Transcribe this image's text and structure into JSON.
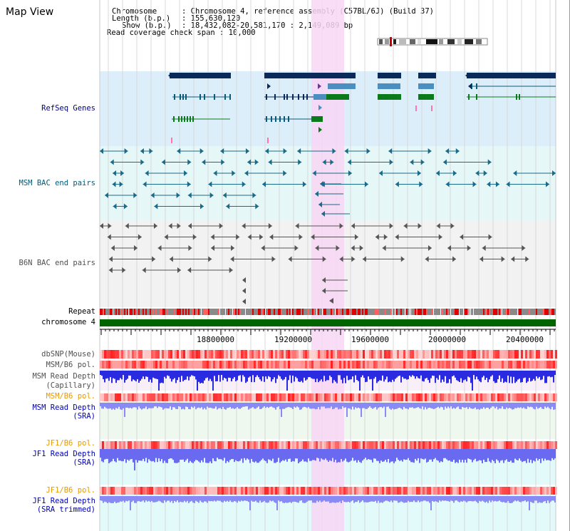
{
  "title": "Map View",
  "header": {
    "chromosome_key": "Chromosome",
    "chromosome_val": ": Chromosome 4, reference assembly (C57BL/6J) (Build 37)",
    "length_key": "Length (b.p.)",
    "length_val": ": 155,630,120",
    "show_key": "Show (b.p.)",
    "show_val": ": 18,432,082-20,581,170 : 2,149,089 bp",
    "coverage": "Read coverage check span : 10,000"
  },
  "tracks": {
    "refseq": "RefSeq Genes",
    "msm_bac": "MSM BAC end pairs",
    "b6n_bac": "B6N BAC end pairs",
    "repeat": "Repeat",
    "chromosome": "chromosome 4",
    "dbsnp": "dbSNP(Mouse)",
    "msm_b6_pol": "MSM/B6 pol.",
    "msm_depth_cap_1": "MSM Read Depth",
    "msm_depth_cap_2": "(Capillary)",
    "msm_b6_pol2": "MSM/B6 pol.",
    "msm_depth_sra_1": "MSM Read Depth",
    "msm_depth_sra_2": "(SRA)",
    "jf1_b6_pol": "JF1/B6 pol.",
    "jf1_depth_sra_1": "JF1 Read Depth",
    "jf1_depth_sra_2": "(SRA)",
    "jf1_b6_pol2": "JF1/B6 pol.",
    "jf1_depth_trim_1": "JF1 Read Depth",
    "jf1_depth_trim_2": "(SRA trimmed)"
  },
  "axis_ticks": [
    "18800000",
    "19200000",
    "19600000",
    "20000000",
    "20400000"
  ],
  "colors": {
    "refseq_label": "#000080",
    "msm_bac_label": "#005a7a",
    "b6n_bac_label": "#505050",
    "pol_label_orange": "#e69a00",
    "depth_label_blue": "#0000b4",
    "highlight": "#f8d6f4",
    "refseq_bg": "#dceefa",
    "msm_bac_bg": "#e6f7f8",
    "b6n_bac_bg": "#f2f2f2",
    "chromosome_bar": "#006400",
    "gene_dark": "#0a2a5a",
    "gene_mid": "#4a8fc0",
    "gene_green": "#0a7a1a"
  }
}
